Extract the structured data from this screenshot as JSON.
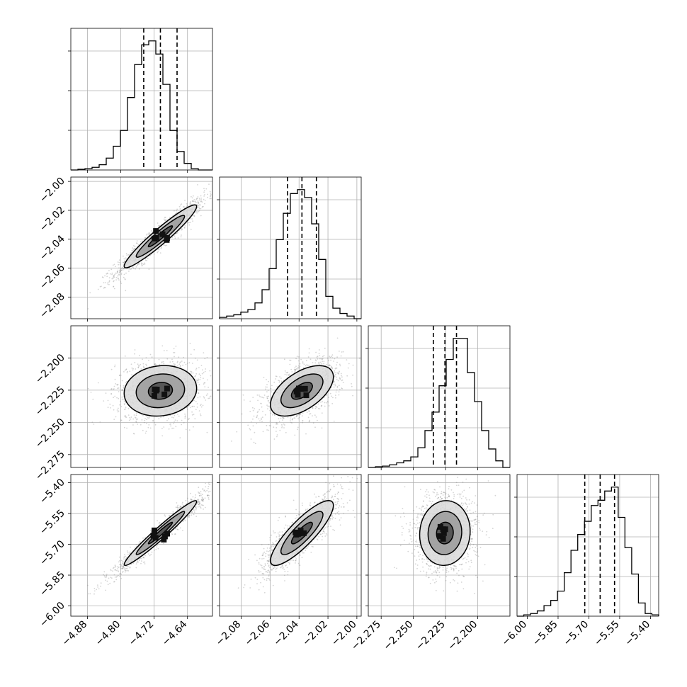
{
  "chart_data": {
    "type": "corner",
    "title": "",
    "variables": [
      {
        "range": [
          -4.92,
          -4.58
        ],
        "ticks": [
          "-4.88",
          "-4.80",
          "-4.72",
          "-4.64"
        ],
        "quantiles": [
          -4.745,
          -4.705,
          -4.665
        ],
        "hist": [
          0.0,
          0.005,
          0.01,
          0.02,
          0.04,
          0.09,
          0.18,
          0.3,
          0.55,
          0.8,
          0.95,
          0.98,
          0.88,
          0.65,
          0.3,
          0.14,
          0.05,
          0.01,
          0.0,
          0.0
        ]
      },
      {
        "range": [
          -2.095,
          -1.997
        ],
        "ticks": [
          "-2.08",
          "-2.06",
          "-2.04",
          "-2.02",
          "-2.00"
        ],
        "quantiles": [
          -2.048,
          -2.038,
          -2.028
        ],
        "hist": [
          0.01,
          0.02,
          0.03,
          0.05,
          0.07,
          0.12,
          0.22,
          0.38,
          0.6,
          0.8,
          0.95,
          0.98,
          0.92,
          0.72,
          0.45,
          0.17,
          0.08,
          0.04,
          0.02,
          0.0
        ]
      },
      {
        "range": [
          -2.285,
          -2.175
        ],
        "ticks": [
          "-2.275",
          "-2.250",
          "-2.225",
          "-2.200"
        ],
        "quantiles": [
          -2.2345,
          -2.2255,
          -2.2165
        ],
        "hist": [
          0.0,
          0.005,
          0.01,
          0.02,
          0.035,
          0.05,
          0.08,
          0.15,
          0.28,
          0.42,
          0.62,
          0.82,
          0.98,
          0.98,
          0.72,
          0.5,
          0.28,
          0.14,
          0.05,
          0.0
        ]
      },
      {
        "range": [
          -6.05,
          -5.36
        ],
        "ticks": [
          "-6.00",
          "-5.85",
          "-5.70",
          "-5.55",
          "-5.40"
        ],
        "quantiles": [
          -5.72,
          -5.645,
          -5.575
        ],
        "hist": [
          0.0,
          0.01,
          0.02,
          0.04,
          0.08,
          0.12,
          0.19,
          0.33,
          0.5,
          0.62,
          0.72,
          0.84,
          0.88,
          0.95,
          0.98,
          0.75,
          0.52,
          0.32,
          0.1,
          0.02,
          0.01
        ]
      }
    ],
    "correlations": [
      {
        "x": 0,
        "y": 1,
        "corr": 0.95
      },
      {
        "x": 0,
        "y": 2,
        "corr": 0.1
      },
      {
        "x": 1,
        "y": 2,
        "corr": 0.55
      },
      {
        "x": 0,
        "y": 3,
        "corr": 0.97
      },
      {
        "x": 1,
        "y": 3,
        "corr": 0.85
      },
      {
        "x": 2,
        "y": 3,
        "corr": 0.05
      }
    ],
    "grid": true,
    "contour_levels": [
      0.5,
      1.0,
      1.5
    ]
  }
}
